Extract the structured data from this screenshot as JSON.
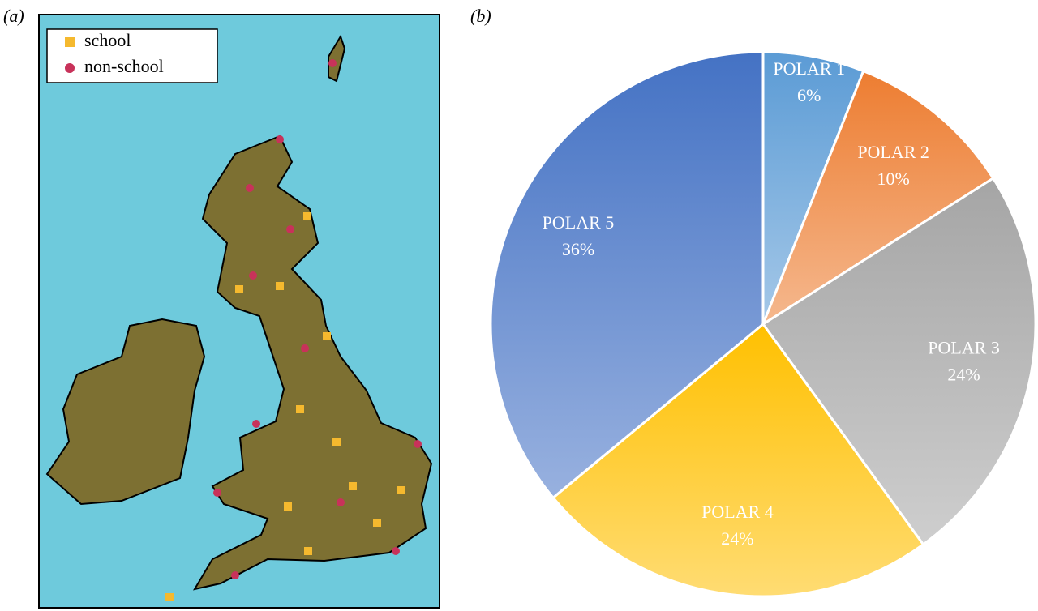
{
  "chart_data": [
    {
      "type": "map",
      "label": "(a)",
      "legend": [
        {
          "name": "school",
          "color": "#f5b92e",
          "marker": "square"
        },
        {
          "name": "non-school",
          "color": "#c8325a",
          "marker": "circle"
        }
      ]
    },
    {
      "type": "pie",
      "label": "(b)",
      "categories": [
        "POLAR 1",
        "POLAR 2",
        "POLAR 3",
        "POLAR 4",
        "POLAR 5"
      ],
      "values": [
        6,
        10,
        24,
        24,
        36
      ],
      "value_labels": [
        "6%",
        "10%",
        "24%",
        "24%",
        "36%"
      ],
      "colors": [
        "#5b9bd5",
        "#ed7d31",
        "#a5a5a5",
        "#ffc000",
        "#4472c4"
      ]
    }
  ]
}
